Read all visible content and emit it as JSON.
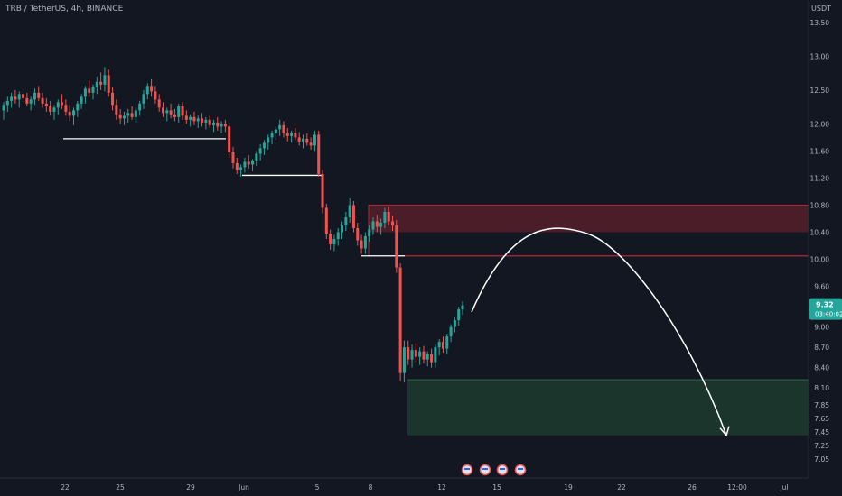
{
  "header": {
    "symbol_line": "TRB / TetherUS, 4h, BINANCE",
    "currency": "USDT"
  },
  "price_tag": {
    "price": "9.32",
    "countdown": "03:40:02"
  },
  "chart_data": {
    "type": "candlestick",
    "price_axis": {
      "min": 6.85,
      "max": 13.75,
      "ticks": [
        "13.50",
        "13.00",
        "12.50",
        "12.00",
        "11.60",
        "11.20",
        "10.80",
        "10.40",
        "10.00",
        "9.60",
        "9.00",
        "8.70",
        "8.40",
        "8.10",
        "7.85",
        "7.65",
        "7.45",
        "7.25",
        "7.05"
      ]
    },
    "time_axis": {
      "labels": [
        "22",
        "25",
        "29",
        "Jun",
        "5",
        "8",
        "12",
        "15",
        "19",
        "22",
        "26",
        "12:00",
        "Jul"
      ]
    },
    "candles_ohlc": [
      [
        12.2,
        12.32,
        12.06,
        12.28
      ],
      [
        12.28,
        12.4,
        12.18,
        12.34
      ],
      [
        12.34,
        12.46,
        12.24,
        12.4
      ],
      [
        12.4,
        12.5,
        12.3,
        12.36
      ],
      [
        12.36,
        12.48,
        12.24,
        12.44
      ],
      [
        12.44,
        12.52,
        12.32,
        12.38
      ],
      [
        12.38,
        12.46,
        12.26,
        12.3
      ],
      [
        12.3,
        12.4,
        12.2,
        12.36
      ],
      [
        12.36,
        12.52,
        12.28,
        12.46
      ],
      [
        12.46,
        12.56,
        12.34,
        12.38
      ],
      [
        12.38,
        12.46,
        12.24,
        12.3
      ],
      [
        12.3,
        12.38,
        12.18,
        12.26
      ],
      [
        12.26,
        12.34,
        12.12,
        12.18
      ],
      [
        12.18,
        12.28,
        12.06,
        12.24
      ],
      [
        12.24,
        12.36,
        12.14,
        12.32
      ],
      [
        12.32,
        12.44,
        12.22,
        12.28
      ],
      [
        12.28,
        12.36,
        12.12,
        12.18
      ],
      [
        12.18,
        12.28,
        12.04,
        12.12
      ],
      [
        12.12,
        12.24,
        11.98,
        12.2
      ],
      [
        12.2,
        12.34,
        12.1,
        12.3
      ],
      [
        12.3,
        12.44,
        12.22,
        12.4
      ],
      [
        12.4,
        12.56,
        12.3,
        12.52
      ],
      [
        12.52,
        12.64,
        12.4,
        12.46
      ],
      [
        12.46,
        12.58,
        12.36,
        12.54
      ],
      [
        12.54,
        12.7,
        12.44,
        12.62
      ],
      [
        12.62,
        12.76,
        12.5,
        12.58
      ],
      [
        12.58,
        12.84,
        12.48,
        12.72
      ],
      [
        12.72,
        12.8,
        12.4,
        12.46
      ],
      [
        12.46,
        12.54,
        12.2,
        12.28
      ],
      [
        12.28,
        12.36,
        12.06,
        12.14
      ],
      [
        12.14,
        12.22,
        12.0,
        12.08
      ],
      [
        12.08,
        12.18,
        11.98,
        12.12
      ],
      [
        12.12,
        12.22,
        12.02,
        12.16
      ],
      [
        12.16,
        12.26,
        12.06,
        12.1
      ],
      [
        12.1,
        12.24,
        12.02,
        12.2
      ],
      [
        12.2,
        12.34,
        12.12,
        12.3
      ],
      [
        12.3,
        12.5,
        12.22,
        12.44
      ],
      [
        12.44,
        12.6,
        12.36,
        12.56
      ],
      [
        12.56,
        12.66,
        12.4,
        12.48
      ],
      [
        12.48,
        12.56,
        12.3,
        12.36
      ],
      [
        12.36,
        12.44,
        12.18,
        12.24
      ],
      [
        12.24,
        12.32,
        12.1,
        12.16
      ],
      [
        12.16,
        12.24,
        12.04,
        12.2
      ],
      [
        12.2,
        12.3,
        12.08,
        12.14
      ],
      [
        12.14,
        12.22,
        12.04,
        12.1
      ],
      [
        12.1,
        12.3,
        12.02,
        12.26
      ],
      [
        12.26,
        12.32,
        12.06,
        12.12
      ],
      [
        12.12,
        12.2,
        12.0,
        12.06
      ],
      [
        12.06,
        12.14,
        11.96,
        12.1
      ],
      [
        12.1,
        12.18,
        11.98,
        12.04
      ],
      [
        12.04,
        12.12,
        11.94,
        12.08
      ],
      [
        12.08,
        12.16,
        11.96,
        12.02
      ],
      [
        12.02,
        12.1,
        11.92,
        12.06
      ],
      [
        12.06,
        12.12,
        11.94,
        11.98
      ],
      [
        11.98,
        12.06,
        11.88,
        12.02
      ],
      [
        12.02,
        12.1,
        11.9,
        11.96
      ],
      [
        11.96,
        12.04,
        11.86,
        12.0
      ],
      [
        12.0,
        12.06,
        11.88,
        11.96
      ],
      [
        11.96,
        12.02,
        11.5,
        11.58
      ],
      [
        11.58,
        11.66,
        11.34,
        11.42
      ],
      [
        11.42,
        11.5,
        11.26,
        11.32
      ],
      [
        11.32,
        11.4,
        11.22,
        11.36
      ],
      [
        11.36,
        11.5,
        11.28,
        11.44
      ],
      [
        11.44,
        11.54,
        11.34,
        11.4
      ],
      [
        11.4,
        11.48,
        11.3,
        11.46
      ],
      [
        11.46,
        11.6,
        11.38,
        11.56
      ],
      [
        11.56,
        11.7,
        11.46,
        11.64
      ],
      [
        11.64,
        11.76,
        11.54,
        11.72
      ],
      [
        11.72,
        11.84,
        11.62,
        11.8
      ],
      [
        11.8,
        11.9,
        11.7,
        11.86
      ],
      [
        11.86,
        11.96,
        11.76,
        11.92
      ],
      [
        11.92,
        12.06,
        11.82,
        11.98
      ],
      [
        11.98,
        12.04,
        11.8,
        11.86
      ],
      [
        11.86,
        11.94,
        11.74,
        11.82
      ],
      [
        11.82,
        11.9,
        11.72,
        11.86
      ],
      [
        11.86,
        11.94,
        11.76,
        11.8
      ],
      [
        11.8,
        11.88,
        11.68,
        11.74
      ],
      [
        11.74,
        11.84,
        11.64,
        11.78
      ],
      [
        11.78,
        11.86,
        11.68,
        11.72
      ],
      [
        11.72,
        11.8,
        11.62,
        11.68
      ],
      [
        11.68,
        11.9,
        11.6,
        11.84
      ],
      [
        11.84,
        11.9,
        11.22,
        11.26
      ],
      [
        11.26,
        11.32,
        10.68,
        10.76
      ],
      [
        10.76,
        10.82,
        10.3,
        10.38
      ],
      [
        10.38,
        10.44,
        10.14,
        10.22
      ],
      [
        10.22,
        10.36,
        10.12,
        10.3
      ],
      [
        10.3,
        10.46,
        10.2,
        10.4
      ],
      [
        10.4,
        10.56,
        10.3,
        10.5
      ],
      [
        10.5,
        10.7,
        10.42,
        10.62
      ],
      [
        10.62,
        10.9,
        10.54,
        10.8
      ],
      [
        10.8,
        10.86,
        10.4,
        10.46
      ],
      [
        10.46,
        10.54,
        10.2,
        10.28
      ],
      [
        10.28,
        10.36,
        10.08,
        10.16
      ],
      [
        10.16,
        10.4,
        10.08,
        10.34
      ],
      [
        10.34,
        10.5,
        10.26,
        10.44
      ],
      [
        10.44,
        10.62,
        10.36,
        10.56
      ],
      [
        10.56,
        10.66,
        10.4,
        10.48
      ],
      [
        10.48,
        10.6,
        10.36,
        10.54
      ],
      [
        10.54,
        10.76,
        10.46,
        10.7
      ],
      [
        10.7,
        10.78,
        10.5,
        10.56
      ],
      [
        10.56,
        10.64,
        10.42,
        10.5
      ],
      [
        10.5,
        10.58,
        9.8,
        9.88
      ],
      [
        9.88,
        9.94,
        8.2,
        8.32
      ],
      [
        8.32,
        8.8,
        8.18,
        8.7
      ],
      [
        8.7,
        8.8,
        8.44,
        8.52
      ],
      [
        8.52,
        8.74,
        8.4,
        8.66
      ],
      [
        8.66,
        8.76,
        8.48,
        8.56
      ],
      [
        8.56,
        8.7,
        8.44,
        8.64
      ],
      [
        8.64,
        8.72,
        8.46,
        8.52
      ],
      [
        8.52,
        8.64,
        8.42,
        8.6
      ],
      [
        8.6,
        8.68,
        8.4,
        8.48
      ],
      [
        8.48,
        8.74,
        8.4,
        8.7
      ],
      [
        8.7,
        8.82,
        8.58,
        8.78
      ],
      [
        8.78,
        8.86,
        8.62,
        8.68
      ],
      [
        8.68,
        8.9,
        8.6,
        8.86
      ],
      [
        8.86,
        9.04,
        8.78,
        9.0
      ],
      [
        9.0,
        9.14,
        8.92,
        9.1
      ],
      [
        9.1,
        9.3,
        9.02,
        9.26
      ],
      [
        9.26,
        9.38,
        9.18,
        9.32
      ]
    ],
    "zones": [
      {
        "top": 10.8,
        "bottom": 10.4,
        "role": "supply"
      },
      {
        "top": 8.22,
        "bottom": 7.4,
        "role": "demand"
      }
    ],
    "resistance_line": 10.05,
    "support_lines": [
      11.78,
      11.24,
      10.05
    ],
    "projection": [
      [
        9.22,
        "start"
      ],
      [
        10.45,
        "peak"
      ],
      [
        7.4,
        "target"
      ]
    ],
    "grid": false,
    "colors": {
      "up": "#26a69a",
      "down": "#ef5350",
      "background": "#131722",
      "text": "#b2b5be"
    }
  }
}
